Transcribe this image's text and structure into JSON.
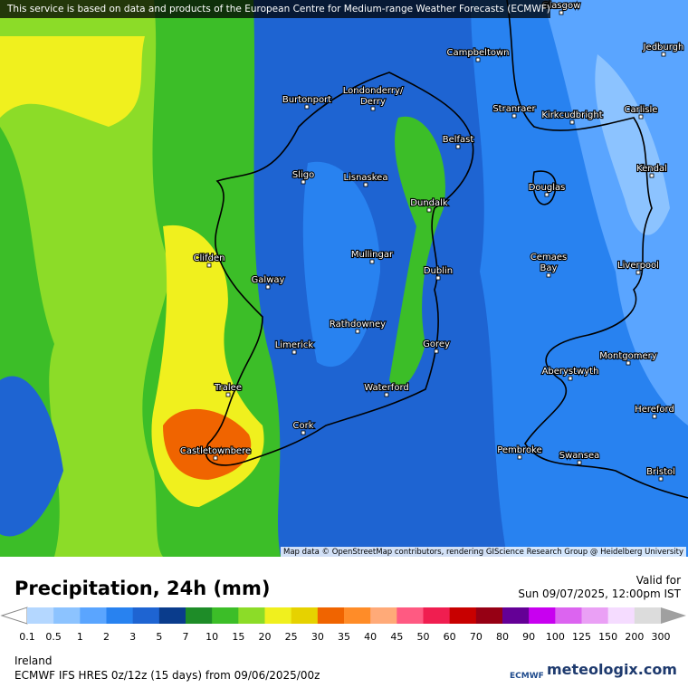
{
  "header": {
    "notice": "This service is based on data and products of the European Centre for Medium-range Weather Forecasts (ECMWF)"
  },
  "map": {
    "cities": [
      {
        "label": [
          "Glasgow"
        ]
      },
      {
        "label": [
          "Campbeltown"
        ]
      },
      {
        "label": [
          "Jedburgh"
        ]
      },
      {
        "label": [
          "Burtonport"
        ]
      },
      {
        "label": [
          "Londonderry/",
          "Derry"
        ]
      },
      {
        "label": [
          "Stranraer"
        ]
      },
      {
        "label": [
          "Kirkcudbright"
        ]
      },
      {
        "label": [
          "Carlisle"
        ]
      },
      {
        "label": [
          "Belfast"
        ]
      },
      {
        "label": [
          "Sligo"
        ]
      },
      {
        "label": [
          "Lisnaskea"
        ]
      },
      {
        "label": [
          "Kendal"
        ]
      },
      {
        "label": [
          "Douglas"
        ]
      },
      {
        "label": [
          "Dundalk"
        ]
      },
      {
        "label": [
          "Clifden"
        ]
      },
      {
        "label": [
          "Mullingar"
        ]
      },
      {
        "label": [
          "Galway"
        ]
      },
      {
        "label": [
          "Dublin"
        ]
      },
      {
        "label": [
          "Liverpool"
        ]
      },
      {
        "label": [
          "Cemaes",
          "Bay"
        ]
      },
      {
        "label": [
          "Rathdowney"
        ]
      },
      {
        "label": [
          "Limerick"
        ]
      },
      {
        "label": [
          "Gorey"
        ]
      },
      {
        "label": [
          "Montgomery"
        ]
      },
      {
        "label": [
          "Aberystwyth"
        ]
      },
      {
        "label": [
          "Tralee"
        ]
      },
      {
        "label": [
          "Waterford"
        ]
      },
      {
        "label": [
          "Hereford"
        ]
      },
      {
        "label": [
          "Cork"
        ]
      },
      {
        "label": [
          "Castletownbere"
        ]
      },
      {
        "label": [
          "Pembroke"
        ]
      },
      {
        "label": [
          "Swansea"
        ]
      },
      {
        "label": [
          "Bristol"
        ]
      }
    ],
    "attribution": "Map data © OpenStreetMap contributors, rendering GIScience Research Group @ Heidelberg University"
  },
  "legend": {
    "title": "Precipitation, 24h (mm)",
    "labels": [
      0.1,
      0.5,
      1,
      2,
      3,
      5,
      7,
      10,
      15,
      20,
      25,
      30,
      35,
      40,
      45,
      50,
      60,
      70,
      80,
      90,
      100,
      125,
      150,
      200,
      300
    ],
    "colors": [
      "#b4d7ff",
      "#8cc3ff",
      "#5aa5ff",
      "#2882f0",
      "#1e64d2",
      "#0a3c8c",
      "#1e8c28",
      "#3cbe28",
      "#8cdc28",
      "#f0f01e",
      "#e6d200",
      "#f06400",
      "#ff8c28",
      "#ffaa78",
      "#ff5a82",
      "#f01e50",
      "#c80000",
      "#960014",
      "#640096",
      "#c800f0",
      "#dc64f0",
      "#eaa0f5",
      "#f5dcff",
      "#dcdcdc"
    ]
  },
  "footer": {
    "valid_label": "Valid for",
    "valid_time": "Sun 09/07/2025, 12:00pm IST",
    "region": "Ireland",
    "model": "ECMWF IFS HRES 0z/12z (15 days) from  09/06/2025/00z",
    "ecmwf_logo": "ECMWF",
    "brand": "meteologix.com"
  }
}
